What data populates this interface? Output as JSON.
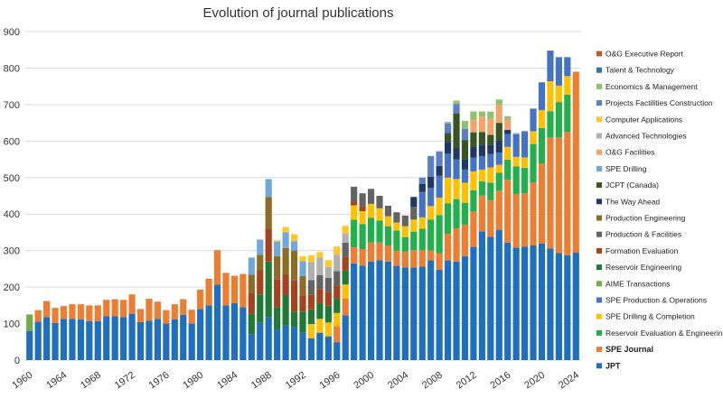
{
  "chart_data": {
    "type": "bar",
    "stacked": true,
    "title": "Evolution of journal publications",
    "xlabel": "",
    "ylabel": "",
    "ylim": [
      0,
      900
    ],
    "yticks": [
      0,
      100,
      200,
      300,
      400,
      500,
      600,
      700,
      800,
      900
    ],
    "x_range": [
      1960,
      2024
    ],
    "xticks": [
      1960,
      1964,
      1968,
      1972,
      1976,
      1980,
      1984,
      1988,
      1992,
      1996,
      2000,
      2004,
      2008,
      2012,
      2016,
      2020,
      2024
    ],
    "grid": "horizontal",
    "legend_position": "right",
    "series": [
      {
        "name": "JPT",
        "color": "#1f6fbf",
        "bold": true,
        "data": {
          "1960": 80,
          "1961": 105,
          "1962": 118,
          "1963": 102,
          "1964": 113,
          "1965": 113,
          "1966": 112,
          "1967": 107,
          "1968": 107,
          "1969": 120,
          "1970": 120,
          "1971": 118,
          "1972": 127,
          "1973": 104,
          "1974": 108,
          "1975": 113,
          "1976": 100,
          "1977": 112,
          "1978": 124,
          "1979": 100,
          "1980": 140,
          "1981": 150,
          "1982": 207,
          "1983": 150,
          "1984": 156,
          "1985": 145,
          "1986": 70,
          "1987": 102,
          "1988": 118,
          "1989": 83,
          "1990": 95,
          "1991": 90,
          "1992": 76,
          "1993": 60,
          "1994": 75,
          "1995": 65,
          "1996": 49,
          "1997": 123,
          "1998": 265,
          "1999": 259,
          "2000": 270,
          "2001": 274,
          "2002": 270,
          "2003": 258,
          "2004": 254,
          "2005": 254,
          "2006": 256,
          "2007": 273,
          "2008": 248,
          "2009": 273,
          "2010": 270,
          "2011": 285,
          "2012": 310,
          "2013": 353,
          "2014": 338,
          "2015": 357,
          "2016": 322,
          "2017": 308,
          "2018": 311,
          "2019": 314,
          "2020": 319,
          "2021": 306,
          "2022": 293,
          "2023": 287,
          "2024": 295
        }
      },
      {
        "name": "SPE Journal",
        "color": "#ed7d31",
        "bold": true,
        "data": {
          "1961": 32,
          "1962": 44,
          "1963": 41,
          "1964": 35,
          "1965": 40,
          "1966": 41,
          "1967": 43,
          "1968": 43,
          "1969": 45,
          "1970": 47,
          "1971": 47,
          "1972": 53,
          "1973": 36,
          "1974": 60,
          "1975": 47,
          "1976": 37,
          "1977": 41,
          "1978": 43,
          "1979": 38,
          "1980": 53,
          "1981": 73,
          "1982": 94,
          "1983": 89,
          "1984": 75,
          "1985": 91,
          "1996": 44,
          "1997": 46,
          "1998": 44,
          "1999": 45,
          "2000": 52,
          "2001": 48,
          "2002": 44,
          "2003": 42,
          "2004": 43,
          "2005": 47,
          "2006": 45,
          "2007": 27,
          "2008": 45,
          "2009": 73,
          "2010": 91,
          "2011": 86,
          "2012": 97,
          "2013": 98,
          "2014": 100,
          "2015": 107,
          "2016": 172,
          "2017": 147,
          "2018": 146,
          "2019": 172,
          "2020": 220,
          "2021": 304,
          "2022": 317,
          "2023": 338,
          "2024": 495
        }
      },
      {
        "name": "Reservoir Evaluation & Engineering",
        "color": "#22b04b",
        "data": {
          "1998": 76,
          "1999": 69,
          "2000": 68,
          "2001": 60,
          "2002": 53,
          "2003": 55,
          "2004": 40,
          "2005": 51,
          "2006": 59,
          "2007": 85,
          "2008": 104,
          "2009": 84,
          "2010": 80,
          "2011": 60,
          "2012": 58,
          "2013": 39,
          "2014": 48,
          "2015": 49,
          "2016": 55,
          "2017": 76,
          "2018": 70,
          "2019": 106,
          "2020": 97,
          "2021": 72,
          "2022": 97,
          "2023": 102
        }
      },
      {
        "name": "SPE Drilling & Completion",
        "color": "#ffc000",
        "data": {
          "1993": 39,
          "1994": 38,
          "1995": 38,
          "1996": 36,
          "1997": 38,
          "1998": 39,
          "1999": 35,
          "2000": 38,
          "2001": 34,
          "2002": 27,
          "2003": 22,
          "2004": 30,
          "2005": 33,
          "2006": 31,
          "2007": 37,
          "2008": 48,
          "2009": 70,
          "2010": 55,
          "2011": 55,
          "2012": 52,
          "2013": 32,
          "2014": 42,
          "2015": 22,
          "2016": 35,
          "2017": 26,
          "2018": 28,
          "2019": 35,
          "2020": 49,
          "2021": 82,
          "2022": 45,
          "2023": 51
        }
      },
      {
        "name": "SPE Production & Operations",
        "color": "#4472c4",
        "data": {
          "2006": 70,
          "2007": 50,
          "2008": 60,
          "2009": 66,
          "2010": 54,
          "2011": 36,
          "2012": 38,
          "2013": 37,
          "2014": 37,
          "2015": 33,
          "2016": 35,
          "2017": 62,
          "2018": 72,
          "2019": 62,
          "2020": 76,
          "2021": 84,
          "2022": 78,
          "2023": 52
        }
      },
      {
        "name": "AIME Transactions",
        "color": "#70ad47",
        "data": {
          "1960": 45
        }
      },
      {
        "name": "Reservoir Engineering",
        "color": "#1e7b34",
        "data": {
          "1986": 57,
          "1987": 78,
          "1988": 152,
          "1989": 62,
          "1990": 83,
          "1991": 43,
          "1992": 57,
          "1993": 40,
          "1994": 43,
          "1995": 46,
          "1996": 39,
          "1997": 38
        }
      },
      {
        "name": "Formation Evaluation",
        "color": "#a5441c",
        "data": {
          "1986": 56,
          "1987": 67,
          "1988": 90,
          "1989": 77,
          "1990": 57,
          "1991": 85,
          "1992": 44,
          "1993": 41,
          "1994": 39,
          "1995": 38,
          "1996": 37,
          "1997": 37,
          "1998": 11,
          "1999": 14
        }
      },
      {
        "name": "Production & Facilities",
        "color": "#636363",
        "data": {
          "1993": 39,
          "1994": 38,
          "1995": 38,
          "1996": 39,
          "1997": 40,
          "1998": 40,
          "1999": 35,
          "2000": 41,
          "2001": 34,
          "2002": 29,
          "2003": 28,
          "2004": 29,
          "2005": 35
        }
      },
      {
        "name": "Production Engineering",
        "color": "#8c6d23",
        "data": {
          "1986": 51,
          "1987": 41,
          "1988": 87,
          "1989": 63,
          "1990": 72,
          "1991": 82,
          "1992": 53
        }
      },
      {
        "name": "The Way Ahead",
        "color": "#1f3864",
        "data": {
          "2005": 27,
          "2006": 22,
          "2007": 30,
          "2008": 27,
          "2009": 32,
          "2010": 31,
          "2011": 27,
          "2012": 30,
          "2013": 31,
          "2014": 25,
          "2015": 35,
          "2016": 12
        }
      },
      {
        "name": "JCPT (Canada)",
        "color": "#375623",
        "data": {
          "2009": 24,
          "2010": 95,
          "2011": 54,
          "2012": 39,
          "2013": 35,
          "2014": 27,
          "2015": 47
        }
      },
      {
        "name": "SPE Drilling",
        "color": "#6fa8dc",
        "data": {
          "1986": 47,
          "1987": 42,
          "1988": 49,
          "1989": 40,
          "1990": 43,
          "1991": 26,
          "1992": 41
        }
      },
      {
        "name": "O&G Facilities",
        "color": "#f4a46a",
        "data": {
          "2012": 35,
          "2013": 42,
          "2014": 44,
          "2015": 49,
          "2016": 28
        }
      },
      {
        "name": "Advanced Technologies",
        "color": "#b0b0b0",
        "data": {
          "1993": 50,
          "1994": 48,
          "1995": 30,
          "1996": 45,
          "1997": 25
        }
      },
      {
        "name": "Computer Applications",
        "color": "#ffc729",
        "data": {
          "1989": 3,
          "1990": 15,
          "1991": 19,
          "1992": 14,
          "1993": 18,
          "1994": 15,
          "1995": 19,
          "1996": 22,
          "1997": 21
        }
      },
      {
        "name": "Projects Factilities Construction",
        "color": "#5b7ec9",
        "data": {
          "2006": 17,
          "2007": 57,
          "2008": 40,
          "2009": 26,
          "2010": 25,
          "2011": 30
        }
      },
      {
        "name": "Economics & Management",
        "color": "#8fc16d",
        "data": {
          "2009": 5,
          "2010": 10,
          "2011": 22,
          "2012": 22,
          "2013": 14,
          "2014": 20,
          "2015": 15,
          "2016": 9,
          "2017": 3
        }
      },
      {
        "name": "Talent & Technology",
        "color": "#2e75b6",
        "data": {}
      },
      {
        "name": "O&G Executive Report",
        "color": "#c55a28",
        "data": {}
      }
    ]
  }
}
